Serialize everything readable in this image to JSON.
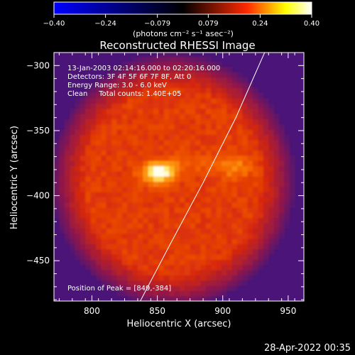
{
  "chart_data": {
    "type": "heatmap",
    "title": "Reconstructed RHESSI Image",
    "xlabel": "Heliocentric X (arcsec)",
    "ylabel": "Heliocentric Y (arcsec)",
    "xlim": [
      771,
      962
    ],
    "ylim": [
      -481,
      -290
    ],
    "x_ticks": [
      800,
      850,
      900,
      950
    ],
    "y_ticks": [
      -300,
      -350,
      -400,
      -450
    ],
    "x_tick_labels": [
      "800",
      "850",
      "900",
      "950"
    ],
    "y_tick_labels": [
      "−300",
      "−350",
      "−400",
      "−450"
    ],
    "colorbar": {
      "range": [
        -0.4,
        0.4
      ],
      "ticks": [
        -0.4,
        -0.24,
        -0.079,
        0.079,
        0.24,
        0.4
      ],
      "tick_labels": [
        "−0.40",
        "−0.24",
        "−0.079",
        "0.079",
        "0.24",
        "0.40"
      ],
      "unit_label": "(photons cm⁻² s⁻¹ asec⁻²)",
      "colors": [
        "#0000ff",
        "#000000",
        "#ff0000",
        "#ffff00",
        "#ffffff"
      ]
    },
    "annotations": [
      "13-Jan-2003 02:14:16.000 to 02:20:16.000",
      "Detectors: 3F 4F 5F 6F 7F 8F, Att 0",
      "Energy Range: 3.0 - 6.0 keV",
      "Clean     Total counts: 1.40E+05"
    ],
    "peak_label": "Position of Peak = [849,-384]",
    "peak": {
      "x": 849,
      "y": -384
    },
    "source_center": {
      "x": 860,
      "y": -390
    },
    "source_radius_arcsec": 80,
    "limb_curve": [
      {
        "x": 932,
        "y": -290
      },
      {
        "x": 910,
        "y": -340
      },
      {
        "x": 885,
        "y": -390
      },
      {
        "x": 860,
        "y": -437
      },
      {
        "x": 837,
        "y": -481
      }
    ],
    "background_color": "#4a1478"
  },
  "footer": {
    "date": "28-Apr-2022 00:35"
  }
}
